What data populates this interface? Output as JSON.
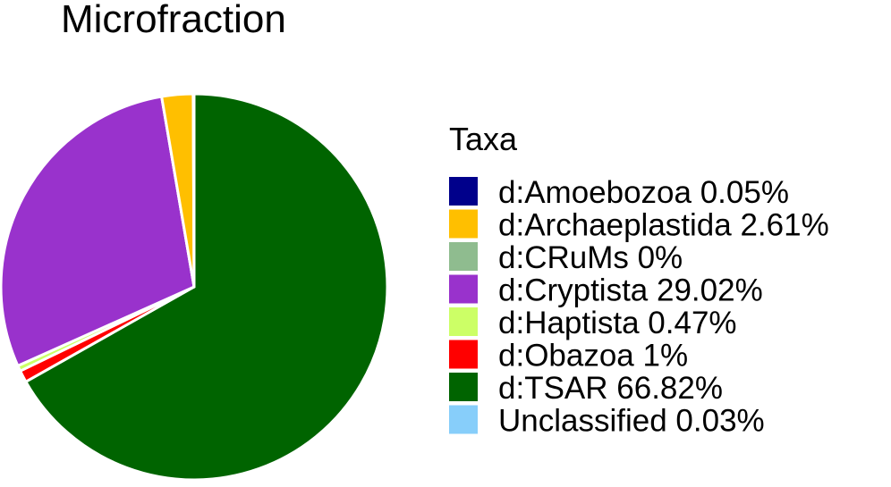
{
  "chart_data": {
    "type": "pie",
    "title": "Microfraction",
    "legend_title": "Taxa",
    "legend_placement": "right",
    "start_angle_deg": 0,
    "direction": "clockwise",
    "slice_stroke": "#ffffff",
    "slices": [
      {
        "label": "d:TSAR",
        "legend_text": "d:TSAR 66.82%",
        "value": 66.82,
        "color": "#006400"
      },
      {
        "label": "d:Obazoa",
        "legend_text": "d:Obazoa 1%",
        "value": 1.0,
        "color": "#ff0000"
      },
      {
        "label": "d:Haptista",
        "legend_text": "d:Haptista 0.47%",
        "value": 0.47,
        "color": "#ccff66"
      },
      {
        "label": "d:Cryptista",
        "legend_text": "d:Cryptista 29.02%",
        "value": 29.02,
        "color": "#9932cc"
      },
      {
        "label": "d:CRuMs",
        "legend_text": "d:CRuMs 0%",
        "value": 0.0,
        "color": "#8fbc8f"
      },
      {
        "label": "d:Archaeplastida",
        "legend_text": "d:Archaeplastida 2.61%",
        "value": 2.61,
        "color": "#ffbf00"
      },
      {
        "label": "d:Amoebozoa",
        "legend_text": "d:Amoebozoa 0.05%",
        "value": 0.05,
        "color": "#00008b"
      },
      {
        "label": "Unclassified",
        "legend_text": "Unclassified 0.03%",
        "value": 0.03,
        "color": "#87cefa"
      }
    ],
    "legend_order": [
      "d:Amoebozoa",
      "d:Archaeplastida",
      "d:CRuMs",
      "d:Cryptista",
      "d:Haptista",
      "d:Obazoa",
      "d:TSAR",
      "Unclassified"
    ]
  }
}
